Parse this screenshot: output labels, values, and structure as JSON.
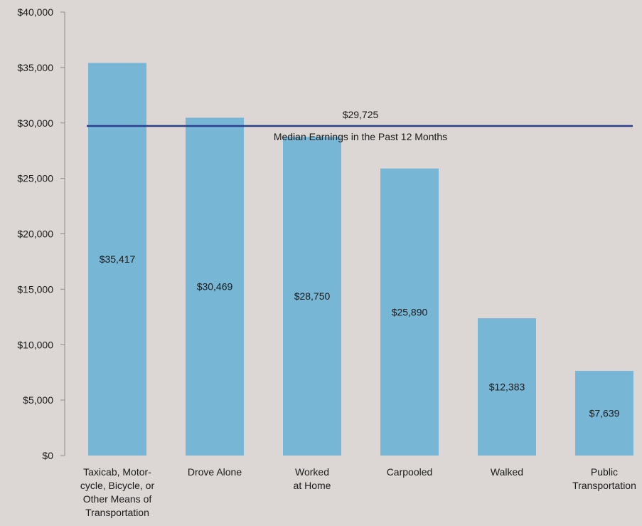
{
  "chart_data": {
    "type": "bar",
    "categories": [
      [
        "Taxicab, Motor-",
        "cycle, Bicycle, or",
        "Other Means of",
        "Transportation"
      ],
      [
        "Drove Alone"
      ],
      [
        "Worked",
        "at Home"
      ],
      [
        "Carpooled"
      ],
      [
        "Walked"
      ],
      [
        "Public",
        "Transportation"
      ]
    ],
    "values": [
      35417,
      30469,
      28750,
      25890,
      12383,
      7639
    ],
    "data_labels": [
      "$35,417",
      "$30,469",
      "$28,750",
      "$25,890",
      "$12,383",
      "$7,639"
    ],
    "ylim": [
      0,
      40000
    ],
    "yticks": [
      0,
      5000,
      10000,
      15000,
      20000,
      25000,
      30000,
      35000,
      40000
    ],
    "ytick_labels": [
      "$0",
      "$5,000",
      "$10,000",
      "$15,000",
      "$20,000",
      "$25,000",
      "$30,000",
      "$35,000",
      "$40,000"
    ],
    "reference_line": {
      "value": 29725,
      "value_label": "$29,725",
      "label": "Median Earnings in the Past 12 Months"
    },
    "grid": false,
    "colors": {
      "bar": "#78b6d6",
      "reference_line": "#2b3f8c",
      "axis": "#8c8c8c",
      "background": "#dcd7d5"
    }
  }
}
